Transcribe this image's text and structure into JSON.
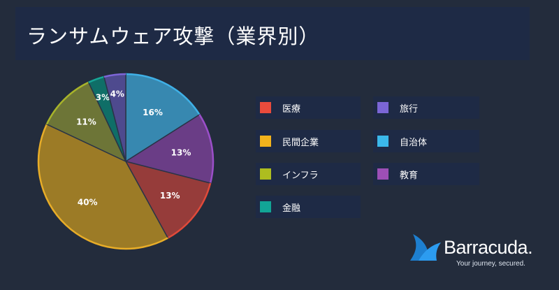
{
  "header": {
    "title": "ランサムウェア攻撃（業界別）"
  },
  "chart_data": {
    "type": "pie",
    "title": "",
    "slices": [
      {
        "label": "自治体",
        "value": 16,
        "display": "16%",
        "color": "#3788b0",
        "edge": "#3fb0e6"
      },
      {
        "label": "教育",
        "value": 13,
        "display": "13%",
        "color": "#6a3d86",
        "edge": "#9b4fc9"
      },
      {
        "label": "医療",
        "value": 13,
        "display": "13%",
        "color": "#963c3a",
        "edge": "#e04a3a"
      },
      {
        "label": "民間企業",
        "value": 40,
        "display": "40%",
        "color": "#9c7b26",
        "edge": "#e8ad28"
      },
      {
        "label": "インフラ",
        "value": 11,
        "display": "11%",
        "color": "#6d7537",
        "edge": "#a8b42a"
      },
      {
        "label": "金融",
        "value": 3,
        "display": "3%",
        "color": "#0f6e67",
        "edge": "#17a697"
      },
      {
        "label": "旅行",
        "value": 4,
        "display": "4%",
        "color": "#4e4a8e",
        "edge": "#7d66d8"
      }
    ],
    "legend_placement": "right"
  },
  "legend": [
    {
      "label": "医療",
      "color": "#e94b3c"
    },
    {
      "label": "旅行",
      "color": "#7b66d6"
    },
    {
      "label": "民間企業",
      "color": "#f2b21c"
    },
    {
      "label": "自治体",
      "color": "#3bb8ea"
    },
    {
      "label": "インフラ",
      "color": "#aebd1f"
    },
    {
      "label": "教育",
      "color": "#9d4fb6"
    },
    {
      "label": "金融",
      "color": "#12a596"
    }
  ],
  "logo": {
    "name": "Barracuda.",
    "tagline": "Your journey, secured."
  }
}
